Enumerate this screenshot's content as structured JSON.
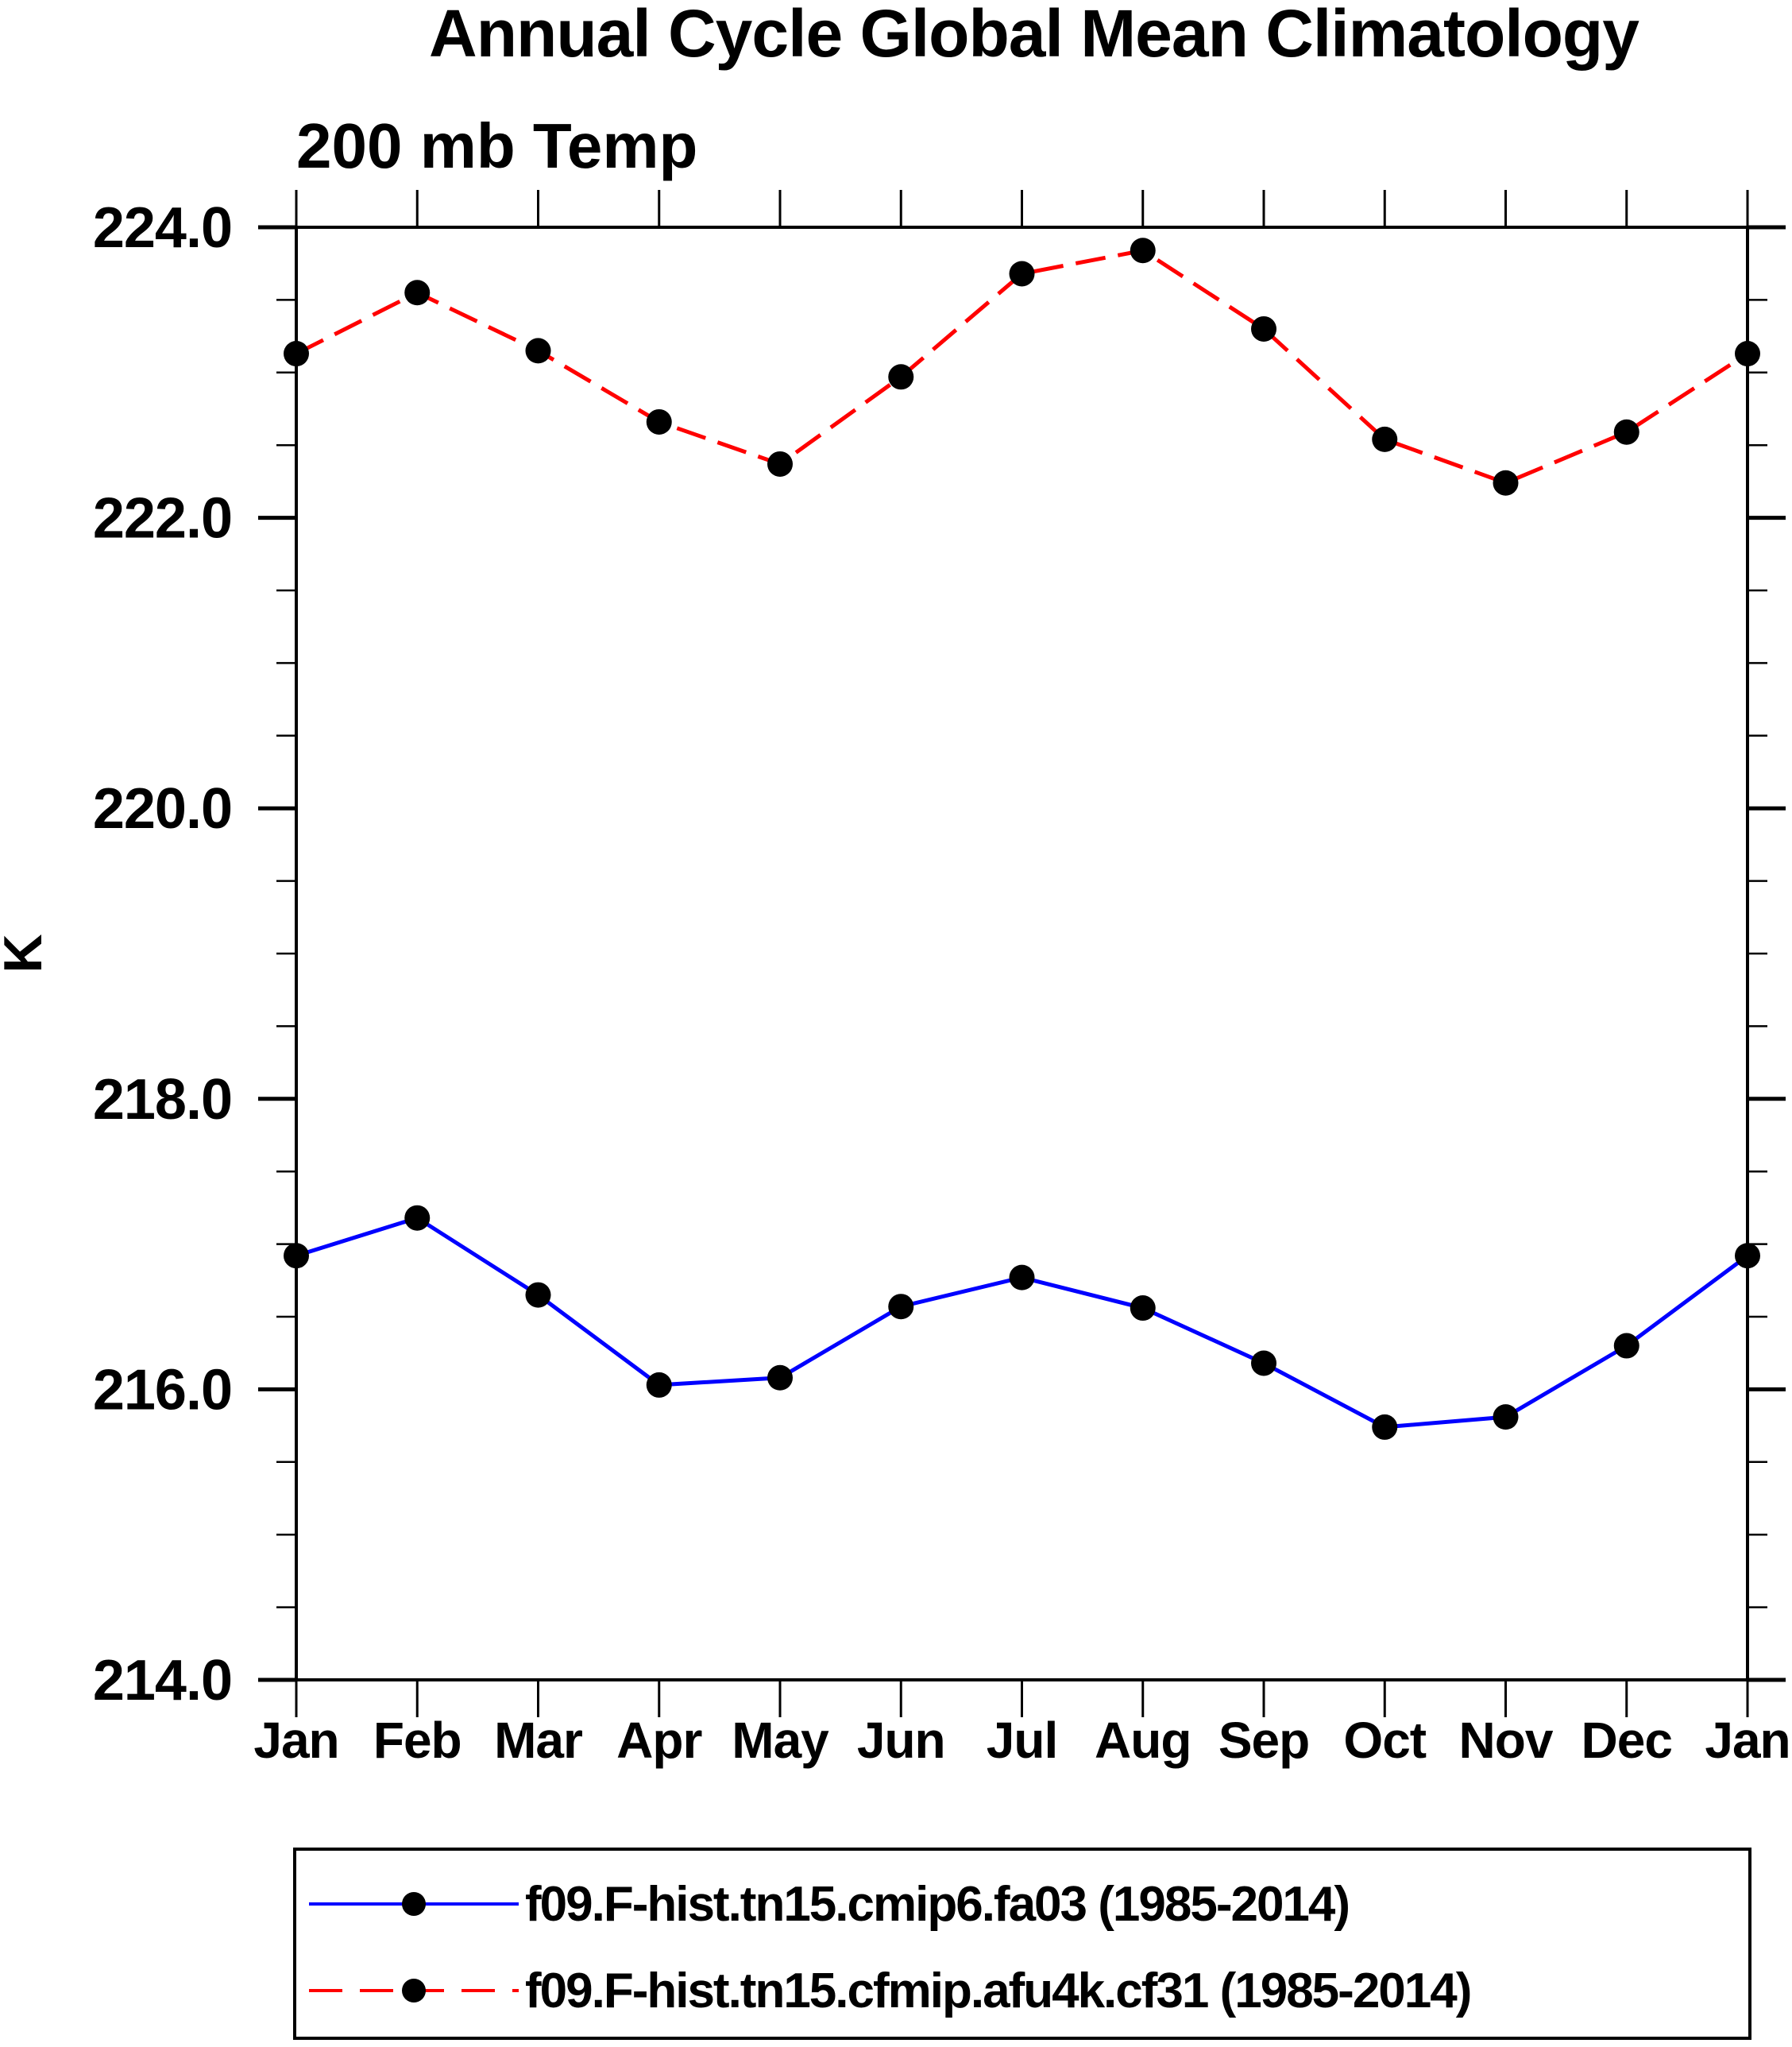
{
  "title": "Annual Cycle Global Mean Climatology",
  "subtitle": "200 mb Temp",
  "y_axis_label": "K",
  "chart_data": {
    "type": "line",
    "title": "Annual Cycle Global Mean Climatology",
    "subtitle": "200 mb Temp",
    "xlabel": "",
    "ylabel": "K",
    "x": [
      "Jan",
      "Feb",
      "Mar",
      "Apr",
      "May",
      "Jun",
      "Jul",
      "Aug",
      "Sep",
      "Oct",
      "Nov",
      "Dec",
      "Jan"
    ],
    "ylim": [
      214.0,
      224.0
    ],
    "y_major_ticks": [
      224.0,
      222.0,
      220.0,
      218.0,
      216.0,
      214.0
    ],
    "y_major_tick_labels": [
      "224.0",
      "222.0",
      "220.0",
      "218.0",
      "216.0",
      "214.0"
    ],
    "y_minor_step": 0.5,
    "grid": false,
    "frame_color": "#000000",
    "marker_color": "#000000",
    "legend_position": "bottom",
    "series": [
      {
        "name": "f09.F-hist.tn15.cmip6.fa03 (1985-2014)",
        "color": "#0000ff",
        "line_style": "solid",
        "marker": "filled-circle",
        "values": [
          216.92,
          217.18,
          216.65,
          216.03,
          216.08,
          216.57,
          216.77,
          216.56,
          216.18,
          215.74,
          215.81,
          216.3,
          216.92
        ]
      },
      {
        "name": "f09.F-hist.tn15.cfmip.afu4k.cf31 (1985-2014)",
        "color": "#ff0000",
        "line_style": "dashed",
        "marker": "filled-circle",
        "values": [
          223.13,
          223.55,
          223.15,
          222.66,
          222.37,
          222.97,
          223.68,
          223.84,
          223.3,
          222.54,
          222.24,
          222.59,
          223.13
        ]
      }
    ]
  }
}
